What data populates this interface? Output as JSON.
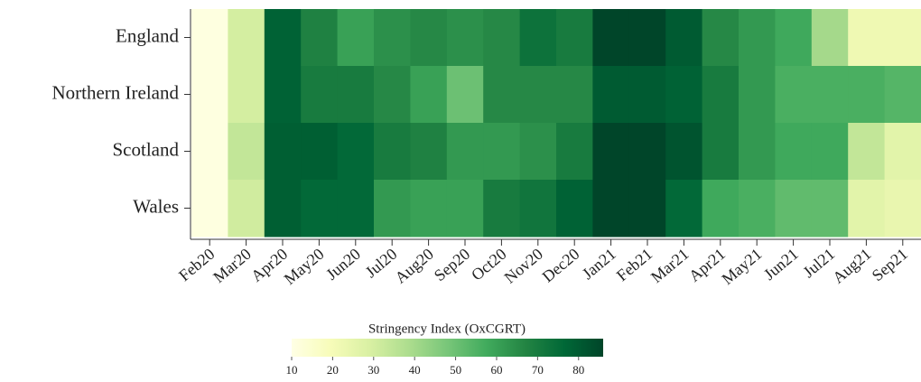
{
  "chart_data": {
    "type": "heatmap",
    "categories": [
      "Feb20",
      "Mar20",
      "Apr20",
      "May20",
      "Jun20",
      "Jul20",
      "Aug20",
      "Sep20",
      "Oct20",
      "Nov20",
      "Dec20",
      "Jan21",
      "Feb21",
      "Mar21",
      "Apr21",
      "May21",
      "Jun21",
      "Jul21",
      "Aug21",
      "Sep21"
    ],
    "rows": [
      "England",
      "Northern Ireland",
      "Scotland",
      "Wales"
    ],
    "values": [
      [
        11,
        30,
        78,
        68,
        60,
        64,
        66,
        64,
        66,
        73,
        70,
        86,
        86,
        80,
        66,
        62,
        58,
        40,
        22,
        22
      ],
      [
        11,
        30,
        78,
        70,
        70,
        66,
        60,
        50,
        66,
        66,
        66,
        80,
        80,
        78,
        70,
        62,
        56,
        56,
        56,
        54
      ],
      [
        11,
        34,
        79,
        79,
        76,
        70,
        68,
        62,
        62,
        64,
        70,
        86,
        86,
        82,
        70,
        62,
        58,
        58,
        34,
        26
      ],
      [
        11,
        31,
        79,
        76,
        76,
        62,
        60,
        60,
        70,
        72,
        78,
        86,
        86,
        76,
        58,
        56,
        52,
        52,
        26,
        24
      ]
    ],
    "colorscale": [
      "#ffffe5",
      "#f7fcb9",
      "#d9f0a3",
      "#addd8e",
      "#78c679",
      "#41ab5d",
      "#238443",
      "#006837",
      "#004529"
    ],
    "colorbar_title": "Stringency Index (OxCGRT)",
    "zlim": [
      10,
      86
    ],
    "zticks": [
      10,
      20,
      30,
      40,
      50,
      60,
      70,
      80
    ]
  }
}
